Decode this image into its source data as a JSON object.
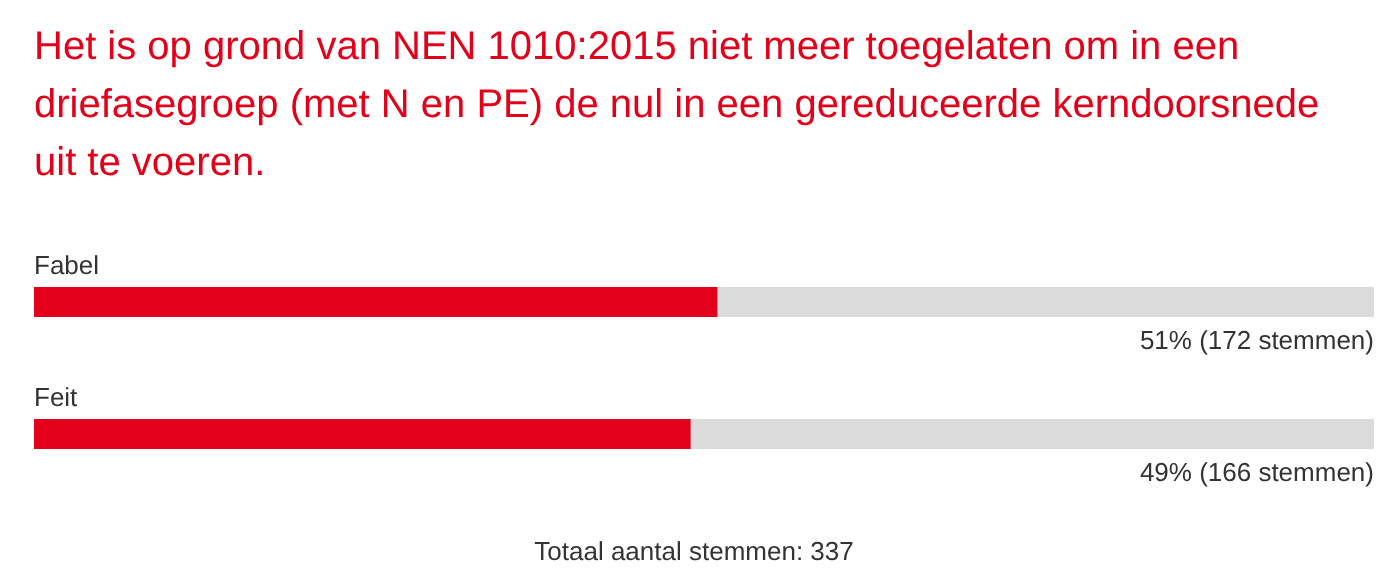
{
  "chart_data": {
    "type": "bar",
    "orientation": "horizontal",
    "title": "Het is op grond van NEN 1010:2015 niet meer toegelaten om in een driefasegroep (met N en PE) de nul in een gereduceerde kerndoorsnede uit te voeren.",
    "categories": [
      "Fabel",
      "Feit"
    ],
    "values": [
      51,
      49
    ],
    "value_labels": [
      "51% (172 stemmen)",
      "49% (166 stemmen)"
    ],
    "color": "#e2001a",
    "xlim": [
      0,
      100
    ],
    "tick_labels": "y",
    "annotations": [
      "Totaal aantal stemmen: 337"
    ]
  }
}
